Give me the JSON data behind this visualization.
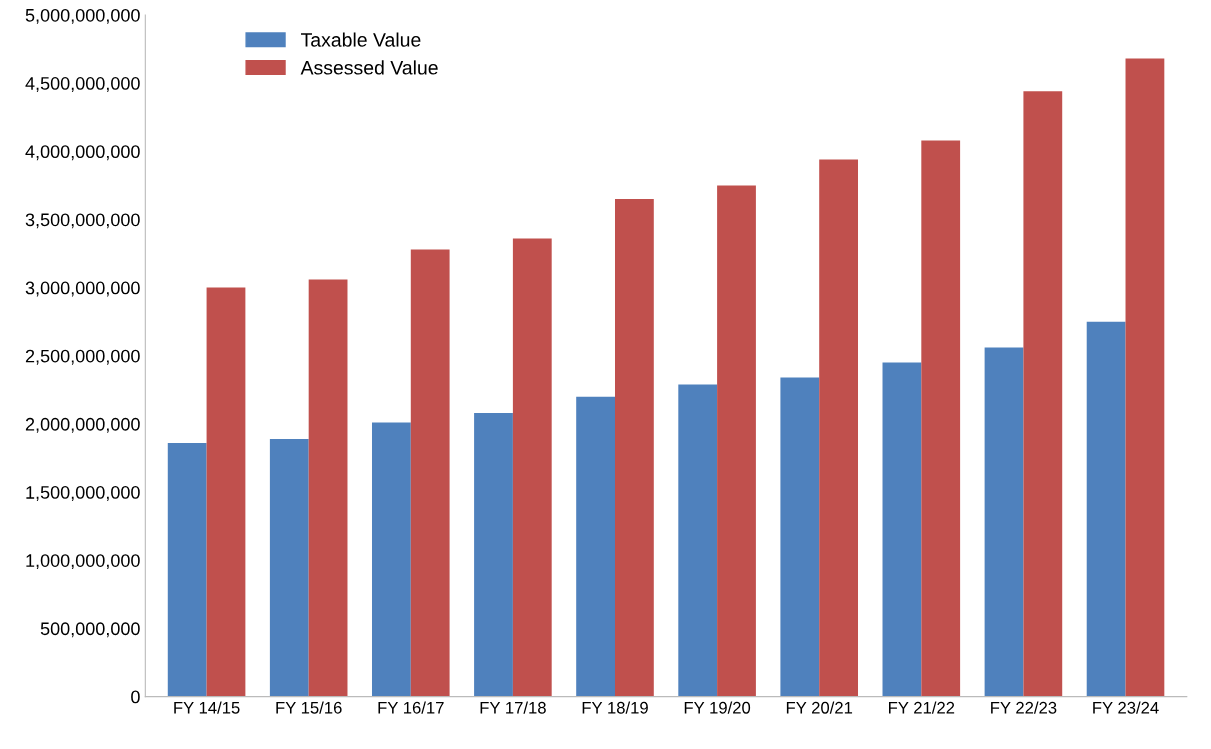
{
  "chart_data": {
    "type": "bar",
    "categories": [
      "FY 14/15",
      "FY 15/16",
      "FY 16/17",
      "FY 17/18",
      "FY 18/19",
      "FY 19/20",
      "FY 20/21",
      "FY 21/22",
      "FY 22/23",
      "FY 23/24"
    ],
    "series": [
      {
        "name": "Taxable Value",
        "color": "#4f81bd",
        "values": [
          1860000000,
          1890000000,
          2010000000,
          2080000000,
          2200000000,
          2290000000,
          2340000000,
          2450000000,
          2560000000,
          2750000000
        ]
      },
      {
        "name": "Assessed Value",
        "color": "#c0504d",
        "values": [
          3000000000,
          3060000000,
          3280000000,
          3360000000,
          3650000000,
          3750000000,
          3940000000,
          4080000000,
          4440000000,
          4680000000
        ]
      }
    ],
    "ylim": [
      0,
      5000000000
    ],
    "yticks": [
      0,
      {
        "value": 500000000,
        "label": "500,000,000"
      },
      {
        "value": 1000000000,
        "label": "1,000,000,000"
      },
      {
        "value": 1500000000,
        "label": "1,500,000,000"
      },
      {
        "value": 2000000000,
        "label": "2,000,000,000"
      },
      {
        "value": 2500000000,
        "label": "2,500,000,000"
      },
      {
        "value": 3000000000,
        "label": "3,000,000,000"
      },
      {
        "value": 3500000000,
        "label": "3,500,000,000"
      },
      {
        "value": 4000000000,
        "label": "4,000,000,000"
      },
      {
        "value": 4500000000,
        "label": "4,500,000,000"
      },
      {
        "value": 5000000000,
        "label": "5,000,000,000"
      }
    ],
    "legend": "top left",
    "grid": false
  }
}
